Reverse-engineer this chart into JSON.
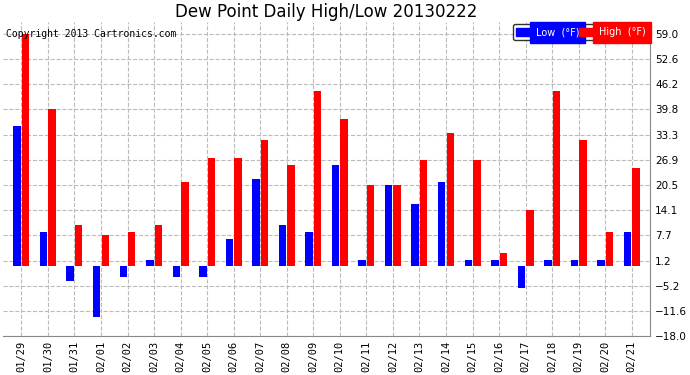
{
  "title": "Dew Point Daily High/Low 20130222",
  "copyright": "Copyright 2013 Cartronics.com",
  "dates": [
    "01/29",
    "01/30",
    "01/31",
    "02/01",
    "02/02",
    "02/03",
    "02/04",
    "02/05",
    "02/06",
    "02/07",
    "02/08",
    "02/09",
    "02/10",
    "02/11",
    "02/12",
    "02/13",
    "02/14",
    "02/15",
    "02/16",
    "02/17",
    "02/18",
    "02/19",
    "02/20",
    "02/21"
  ],
  "high": [
    59.0,
    39.8,
    10.4,
    7.7,
    8.5,
    10.4,
    21.2,
    27.5,
    27.5,
    32.0,
    25.7,
    44.6,
    37.4,
    20.5,
    20.5,
    26.9,
    33.8,
    26.9,
    3.2,
    14.1,
    44.6,
    32.0,
    8.5,
    24.8
  ],
  "low": [
    35.6,
    8.6,
    -4.0,
    -13.0,
    -3.0,
    1.4,
    -3.0,
    -3.0,
    6.8,
    22.0,
    10.4,
    8.6,
    25.7,
    1.4,
    20.5,
    15.8,
    21.2,
    1.4,
    1.4,
    -5.8,
    1.4,
    1.4,
    1.4,
    8.6
  ],
  "ylim": [
    -18.0,
    62.0
  ],
  "yticks": [
    -18.0,
    -11.6,
    -5.2,
    1.2,
    7.7,
    14.1,
    20.5,
    26.9,
    33.3,
    39.8,
    46.2,
    52.6,
    59.0
  ],
  "high_color": "#FF0000",
  "low_color": "#0000FF",
  "bg_color": "#FFFFFF",
  "plot_bg_color": "#FFFFFF",
  "grid_color": "#BBBBBB",
  "title_fontsize": 12,
  "tick_fontsize": 7.5,
  "copyright_fontsize": 7
}
